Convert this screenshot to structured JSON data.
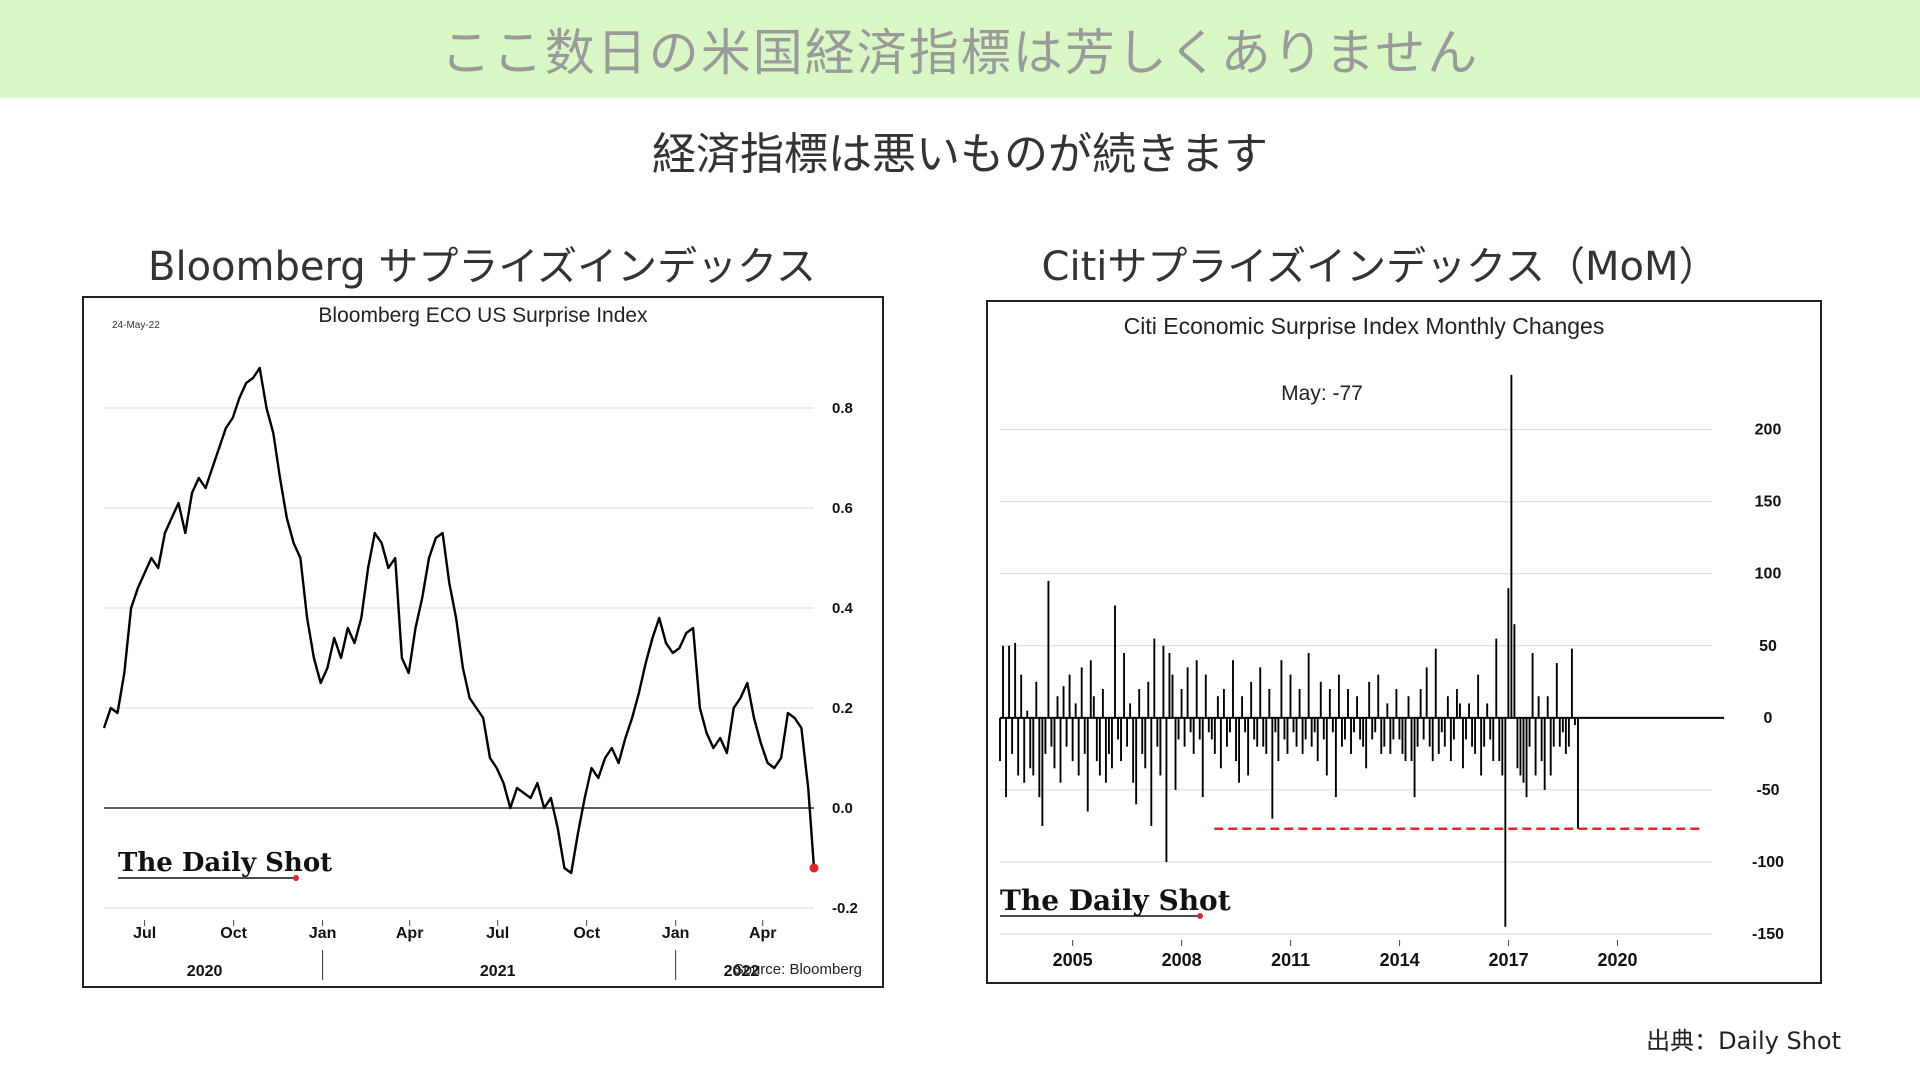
{
  "header": {
    "banner_title": "ここ数日の米国経済指標は芳しくありません",
    "subtitle": "経済指標は悪いものが続きます"
  },
  "panels": {
    "left_title": "Bloomberg サプライズインデックス",
    "right_title": "Citiサプライズインデックス（MoM）"
  },
  "footer": {
    "source": "出典：Daily Shot"
  },
  "colors": {
    "banner_bg": "#d9f7c4",
    "line": "#000000",
    "highlight": "#e0262e",
    "grid": "#d9d9d9"
  },
  "chart_data": [
    {
      "type": "line",
      "title": "Bloomberg ECO US Surprise Index",
      "date_stamp": "24-May-22",
      "logo": "The Daily Shot",
      "source": "Source: Bloomberg",
      "xlabel": "",
      "ylabel": "",
      "ylim": [
        -0.2,
        0.9
      ],
      "xlim": [
        "2020-05-20",
        "2022-05-24"
      ],
      "y_ticks": [
        {
          "v": 0.8,
          "label": "0.8"
        },
        {
          "v": 0.6,
          "label": "0.6"
        },
        {
          "v": 0.4,
          "label": "0.4"
        },
        {
          "v": 0.2,
          "label": "0.2"
        },
        {
          "v": 0.0,
          "label": "0.0"
        },
        {
          "v": -0.2,
          "label": "-0.2"
        }
      ],
      "month_ticks": [
        {
          "date": "2020-07-01",
          "label": "Jul"
        },
        {
          "date": "2020-10-01",
          "label": "Oct"
        },
        {
          "date": "2021-01-01",
          "label": "Jan"
        },
        {
          "date": "2021-04-01",
          "label": "Apr"
        },
        {
          "date": "2021-07-01",
          "label": "Jul"
        },
        {
          "date": "2021-10-01",
          "label": "Oct"
        },
        {
          "date": "2022-01-01",
          "label": "Jan"
        },
        {
          "date": "2022-04-01",
          "label": "Apr"
        }
      ],
      "year_labels": [
        {
          "date": "2020-09-01",
          "label": "2020"
        },
        {
          "date": "2021-07-01",
          "label": "2021"
        },
        {
          "date": "2022-03-10",
          "label": "2022"
        }
      ],
      "year_separators": [
        "2021-01-01",
        "2022-01-01"
      ],
      "grid": true,
      "series": [
        {
          "points": [
            [
              "2020-05-20",
              0.16
            ],
            [
              "2020-05-27",
              0.2
            ],
            [
              "2020-06-03",
              0.19
            ],
            [
              "2020-06-10",
              0.27
            ],
            [
              "2020-06-17",
              0.4
            ],
            [
              "2020-06-24",
              0.44
            ],
            [
              "2020-07-01",
              0.47
            ],
            [
              "2020-07-08",
              0.5
            ],
            [
              "2020-07-15",
              0.48
            ],
            [
              "2020-07-22",
              0.55
            ],
            [
              "2020-07-29",
              0.58
            ],
            [
              "2020-08-05",
              0.61
            ],
            [
              "2020-08-12",
              0.55
            ],
            [
              "2020-08-19",
              0.63
            ],
            [
              "2020-08-26",
              0.66
            ],
            [
              "2020-09-02",
              0.64
            ],
            [
              "2020-09-09",
              0.68
            ],
            [
              "2020-09-16",
              0.72
            ],
            [
              "2020-09-23",
              0.76
            ],
            [
              "2020-09-30",
              0.78
            ],
            [
              "2020-10-07",
              0.82
            ],
            [
              "2020-10-14",
              0.85
            ],
            [
              "2020-10-21",
              0.86
            ],
            [
              "2020-10-28",
              0.88
            ],
            [
              "2020-11-04",
              0.8
            ],
            [
              "2020-11-11",
              0.75
            ],
            [
              "2020-11-18",
              0.66
            ],
            [
              "2020-11-25",
              0.58
            ],
            [
              "2020-12-02",
              0.53
            ],
            [
              "2020-12-09",
              0.5
            ],
            [
              "2020-12-16",
              0.38
            ],
            [
              "2020-12-23",
              0.3
            ],
            [
              "2020-12-30",
              0.25
            ],
            [
              "2021-01-06",
              0.28
            ],
            [
              "2021-01-13",
              0.34
            ],
            [
              "2021-01-20",
              0.3
            ],
            [
              "2021-01-27",
              0.36
            ],
            [
              "2021-02-03",
              0.33
            ],
            [
              "2021-02-10",
              0.38
            ],
            [
              "2021-02-17",
              0.48
            ],
            [
              "2021-02-24",
              0.55
            ],
            [
              "2021-03-03",
              0.53
            ],
            [
              "2021-03-10",
              0.48
            ],
            [
              "2021-03-17",
              0.5
            ],
            [
              "2021-03-24",
              0.3
            ],
            [
              "2021-03-31",
              0.27
            ],
            [
              "2021-04-07",
              0.36
            ],
            [
              "2021-04-14",
              0.42
            ],
            [
              "2021-04-21",
              0.5
            ],
            [
              "2021-04-28",
              0.54
            ],
            [
              "2021-05-05",
              0.55
            ],
            [
              "2021-05-12",
              0.45
            ],
            [
              "2021-05-19",
              0.38
            ],
            [
              "2021-05-26",
              0.28
            ],
            [
              "2021-06-02",
              0.22
            ],
            [
              "2021-06-09",
              0.2
            ],
            [
              "2021-06-16",
              0.18
            ],
            [
              "2021-06-23",
              0.1
            ],
            [
              "2021-06-30",
              0.08
            ],
            [
              "2021-07-07",
              0.05
            ],
            [
              "2021-07-14",
              0.0
            ],
            [
              "2021-07-21",
              0.04
            ],
            [
              "2021-07-28",
              0.03
            ],
            [
              "2021-08-04",
              0.02
            ],
            [
              "2021-08-11",
              0.05
            ],
            [
              "2021-08-18",
              0.0
            ],
            [
              "2021-08-25",
              0.02
            ],
            [
              "2021-09-01",
              -0.04
            ],
            [
              "2021-09-08",
              -0.12
            ],
            [
              "2021-09-15",
              -0.13
            ],
            [
              "2021-09-22",
              -0.05
            ],
            [
              "2021-09-29",
              0.02
            ],
            [
              "2021-10-06",
              0.08
            ],
            [
              "2021-10-13",
              0.06
            ],
            [
              "2021-10-20",
              0.1
            ],
            [
              "2021-10-27",
              0.12
            ],
            [
              "2021-11-03",
              0.09
            ],
            [
              "2021-11-10",
              0.14
            ],
            [
              "2021-11-17",
              0.18
            ],
            [
              "2021-11-24",
              0.23
            ],
            [
              "2021-12-01",
              0.29
            ],
            [
              "2021-12-08",
              0.34
            ],
            [
              "2021-12-15",
              0.38
            ],
            [
              "2021-12-22",
              0.33
            ],
            [
              "2021-12-29",
              0.31
            ],
            [
              "2022-01-05",
              0.32
            ],
            [
              "2022-01-12",
              0.35
            ],
            [
              "2022-01-19",
              0.36
            ],
            [
              "2022-01-26",
              0.2
            ],
            [
              "2022-02-02",
              0.15
            ],
            [
              "2022-02-09",
              0.12
            ],
            [
              "2022-02-16",
              0.14
            ],
            [
              "2022-02-23",
              0.11
            ],
            [
              "2022-03-02",
              0.2
            ],
            [
              "2022-03-09",
              0.22
            ],
            [
              "2022-03-16",
              0.25
            ],
            [
              "2022-03-23",
              0.18
            ],
            [
              "2022-03-30",
              0.13
            ],
            [
              "2022-04-06",
              0.09
            ],
            [
              "2022-04-13",
              0.08
            ],
            [
              "2022-04-20",
              0.1
            ],
            [
              "2022-04-27",
              0.19
            ],
            [
              "2022-05-04",
              0.18
            ],
            [
              "2022-05-11",
              0.16
            ],
            [
              "2022-05-18",
              0.04
            ],
            [
              "2022-05-24",
              -0.12
            ]
          ],
          "highlight_last": true
        }
      ]
    },
    {
      "type": "bar",
      "title": "Citi Economic Surprise Index Monthly Changes",
      "annotation": "May:    -77",
      "logo": "The Daily Shot",
      "xlabel": "",
      "ylabel": "",
      "ylim": [
        -150,
        240
      ],
      "xlim": [
        2003.0,
        2022.6
      ],
      "y_ticks": [
        {
          "v": 200,
          "label": "200"
        },
        {
          "v": 150,
          "label": "150"
        },
        {
          "v": 100,
          "label": "100"
        },
        {
          "v": 50,
          "label": "50"
        },
        {
          "v": 0,
          "label": "0"
        },
        {
          "v": -50,
          "label": "-50"
        },
        {
          "v": -100,
          "label": "-100"
        },
        {
          "v": -150,
          "label": "-150"
        }
      ],
      "x_ticks": [
        {
          "v": 2005,
          "label": "2005"
        },
        {
          "v": 2008,
          "label": "2008"
        },
        {
          "v": 2011,
          "label": "2011"
        },
        {
          "v": 2014,
          "label": "2014"
        },
        {
          "v": 2017,
          "label": "2017"
        },
        {
          "v": 2020,
          "label": "2020"
        }
      ],
      "reference_line": {
        "value": -77,
        "from": 2008.9,
        "to": 2022.3
      },
      "grid": true,
      "start": 2003.0,
      "step_years": 0.0833,
      "values": [
        -30,
        50,
        -55,
        50,
        -25,
        52,
        -40,
        30,
        -45,
        5,
        -35,
        -40,
        25,
        -55,
        -75,
        -25,
        95,
        -20,
        -35,
        15,
        -45,
        22,
        -20,
        30,
        -30,
        10,
        -40,
        35,
        -25,
        -65,
        40,
        15,
        -30,
        -40,
        20,
        -45,
        -25,
        -35,
        78,
        -15,
        -30,
        45,
        -20,
        10,
        -45,
        -60,
        20,
        -25,
        -35,
        25,
        -75,
        55,
        -20,
        -40,
        50,
        -100,
        45,
        30,
        -50,
        -15,
        20,
        -20,
        35,
        -10,
        -25,
        40,
        -15,
        -55,
        30,
        -10,
        -15,
        -25,
        15,
        -35,
        20,
        -20,
        -10,
        40,
        -30,
        -45,
        15,
        -10,
        -40,
        25,
        -15,
        -20,
        35,
        -20,
        -25,
        20,
        -70,
        -10,
        -30,
        40,
        -15,
        -25,
        30,
        -10,
        -20,
        20,
        -25,
        -15,
        45,
        -20,
        -10,
        -30,
        25,
        -15,
        -40,
        20,
        -10,
        -55,
        30,
        -20,
        -15,
        20,
        -25,
        -10,
        15,
        -15,
        -20,
        -35,
        25,
        -15,
        -10,
        30,
        -25,
        -20,
        10,
        -25,
        -15,
        20,
        -15,
        -25,
        -30,
        15,
        -30,
        -55,
        -20,
        20,
        -15,
        35,
        -20,
        -30,
        48,
        -25,
        -10,
        -20,
        15,
        -30,
        -15,
        20,
        10,
        -35,
        -15,
        10,
        -20,
        -25,
        30,
        -40,
        -20,
        10,
        -15,
        -30,
        55,
        -30,
        -40,
        -145,
        90,
        238,
        65,
        -35,
        -40,
        -45,
        -55,
        -20,
        45,
        -40,
        15,
        -30,
        -50,
        15,
        -40,
        -20,
        38,
        -20,
        -10,
        -25,
        -20,
        48,
        -5,
        -77
      ]
    }
  ]
}
